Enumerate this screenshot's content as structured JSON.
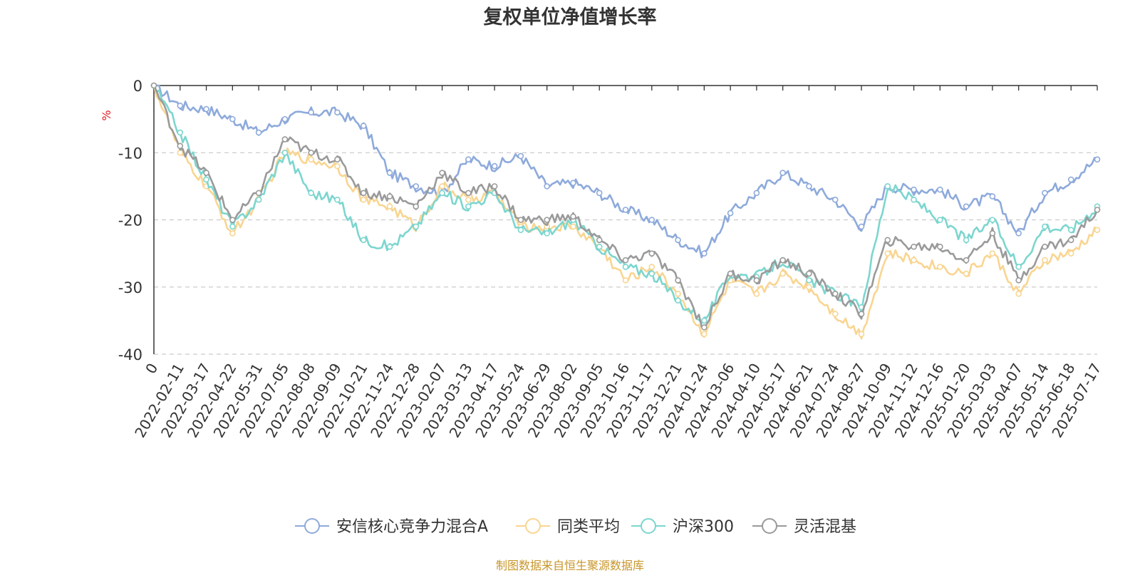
{
  "chart_data": {
    "type": "line",
    "title": "复权单位净值增长率",
    "y_unit": "%",
    "ylim": [
      -40,
      0
    ],
    "y_ticks": [
      0,
      -10,
      -20,
      -30,
      -40
    ],
    "grid": "horizontal dashed",
    "legend_position": "bottom-center",
    "x_tick_labels": [
      "0",
      "2022-02-11",
      "2022-03-17",
      "2022-04-22",
      "2022-05-31",
      "2022-07-05",
      "2022-08-08",
      "2022-09-09",
      "2022-10-21",
      "2022-11-24",
      "2022-12-28",
      "2023-02-07",
      "2023-03-13",
      "2023-04-17",
      "2023-05-24",
      "2023-06-29",
      "2023-08-02",
      "2023-09-05",
      "2023-10-16",
      "2023-11-17",
      "2023-12-21",
      "2024-01-24",
      "2024-03-06",
      "2024-04-10",
      "2024-05-17",
      "2024-06-21",
      "2024-07-24",
      "2024-08-27",
      "2024-10-09",
      "2024-11-12",
      "2024-12-16",
      "2025-01-20",
      "2025-03-03",
      "2025-04-07",
      "2025-05-14",
      "2025-06-18",
      "2025-07-17"
    ],
    "x": [
      "0",
      "2022-02-11",
      "2022-03-17",
      "2022-04-22",
      "2022-05-31",
      "2022-07-05",
      "2022-08-08",
      "2022-09-09",
      "2022-10-21",
      "2022-11-24",
      "2022-12-28",
      "2023-02-07",
      "2023-03-13",
      "2023-04-17",
      "2023-05-24",
      "2023-06-29",
      "2023-08-02",
      "2023-09-05",
      "2023-10-16",
      "2023-11-17",
      "2023-12-21",
      "2024-01-24",
      "2024-03-06",
      "2024-04-10",
      "2024-05-17",
      "2024-06-21",
      "2024-07-24",
      "2024-08-27",
      "2024-10-09",
      "2024-11-12",
      "2024-12-16",
      "2025-01-20",
      "2025-03-03",
      "2025-04-07",
      "2025-05-14",
      "2025-06-18",
      "2025-07-17"
    ],
    "series": [
      {
        "name": "安信核心竞争力混合A",
        "color": "#8eaadb",
        "values": [
          0,
          -3,
          -3.5,
          -5,
          -7,
          -5,
          -4,
          -4,
          -6,
          -13,
          -15,
          -16,
          -11,
          -12,
          -10.5,
          -15,
          -14.5,
          -16,
          -18.5,
          -20,
          -23,
          -25,
          -19,
          -16,
          -13,
          -15,
          -17,
          -21,
          -15,
          -15.5,
          -15.5,
          -18,
          -16.5,
          -22,
          -16,
          -14,
          -11
        ]
      },
      {
        "name": "同类平均",
        "color": "#f9d591",
        "values": [
          0,
          -10,
          -15,
          -22,
          -17,
          -10,
          -11,
          -12,
          -17,
          -18,
          -21,
          -15,
          -17,
          -16,
          -21,
          -21,
          -21,
          -24,
          -29,
          -27,
          -31,
          -37,
          -29,
          -31,
          -28,
          -30,
          -34,
          -37,
          -25,
          -26,
          -27,
          -28,
          -25,
          -31,
          -26,
          -25,
          -21.5
        ]
      },
      {
        "name": "沪深300",
        "color": "#7cd6cf",
        "values": [
          0,
          -7,
          -14,
          -21,
          -17,
          -10,
          -16,
          -17,
          -23,
          -24,
          -21,
          -16,
          -18,
          -16,
          -21.5,
          -22,
          -20,
          -24,
          -27,
          -28,
          -32,
          -35,
          -28,
          -28.5,
          -26,
          -29,
          -31,
          -33,
          -15,
          -17,
          -20,
          -23,
          -20,
          -27,
          -21,
          -21.5,
          -18
        ]
      },
      {
        "name": "灵活混基",
        "color": "#9a9a9a",
        "values": [
          0,
          -9,
          -13,
          -20,
          -16,
          -8,
          -10,
          -11,
          -16,
          -16.5,
          -18,
          -13,
          -16,
          -15,
          -20,
          -20,
          -19.5,
          -23,
          -26,
          -25,
          -29,
          -36,
          -28,
          -29,
          -26,
          -28,
          -31,
          -34,
          -23,
          -24,
          -24,
          -26,
          -22,
          -29,
          -24,
          -23,
          -18.5
        ]
      }
    ]
  },
  "source_note": "制图数据来自恒生聚源数据库"
}
